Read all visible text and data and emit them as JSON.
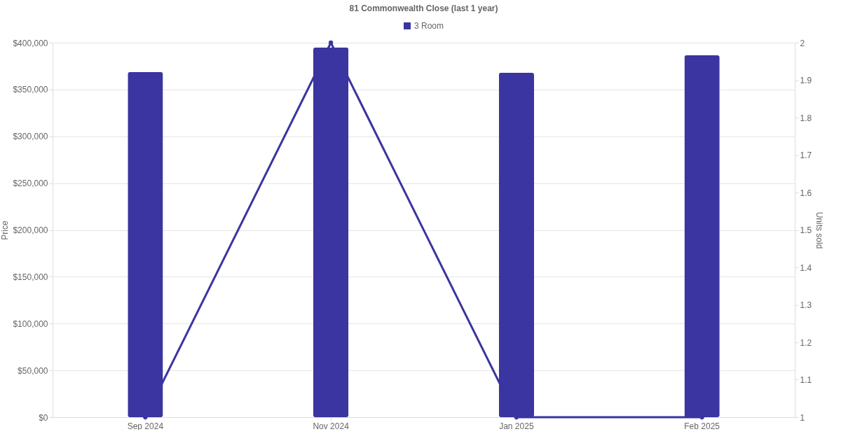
{
  "chart_data": {
    "type": "bar",
    "title": "81 Commonwealth Close (last 1 year)",
    "ylabel": "Price",
    "y2label": "Units sold",
    "categories": [
      "Sep 2024",
      "Nov 2024",
      "Jan 2025",
      "Feb 2025"
    ],
    "series": [
      {
        "name": "3 Room",
        "color": "#3a35a0",
        "values": [
          368600,
          394800,
          367900,
          386500
        ]
      },
      {
        "type": "line",
        "axis": "y2",
        "color": "#3a35a0",
        "values": [
          1,
          2,
          1,
          1
        ]
      }
    ],
    "ylim": [
      0,
      400000
    ],
    "yticks": [
      {
        "value": 0,
        "label": "$0"
      },
      {
        "value": 50000,
        "label": "$50,000"
      },
      {
        "value": 100000,
        "label": "$100,000"
      },
      {
        "value": 150000,
        "label": "$150,000"
      },
      {
        "value": 200000,
        "label": "$200,000"
      },
      {
        "value": 250000,
        "label": "$250,000"
      },
      {
        "value": 300000,
        "label": "$300,000"
      },
      {
        "value": 350000,
        "label": "$350,000"
      },
      {
        "value": 400000,
        "label": "$400,000"
      }
    ],
    "y2lim": [
      1,
      2
    ],
    "y2ticks": [
      1,
      1.1,
      1.2,
      1.3,
      1.4,
      1.5,
      1.6,
      1.7,
      1.8,
      1.9,
      2
    ],
    "grid": "y",
    "legend": "top",
    "marker": "circle",
    "line_style": "solid"
  }
}
